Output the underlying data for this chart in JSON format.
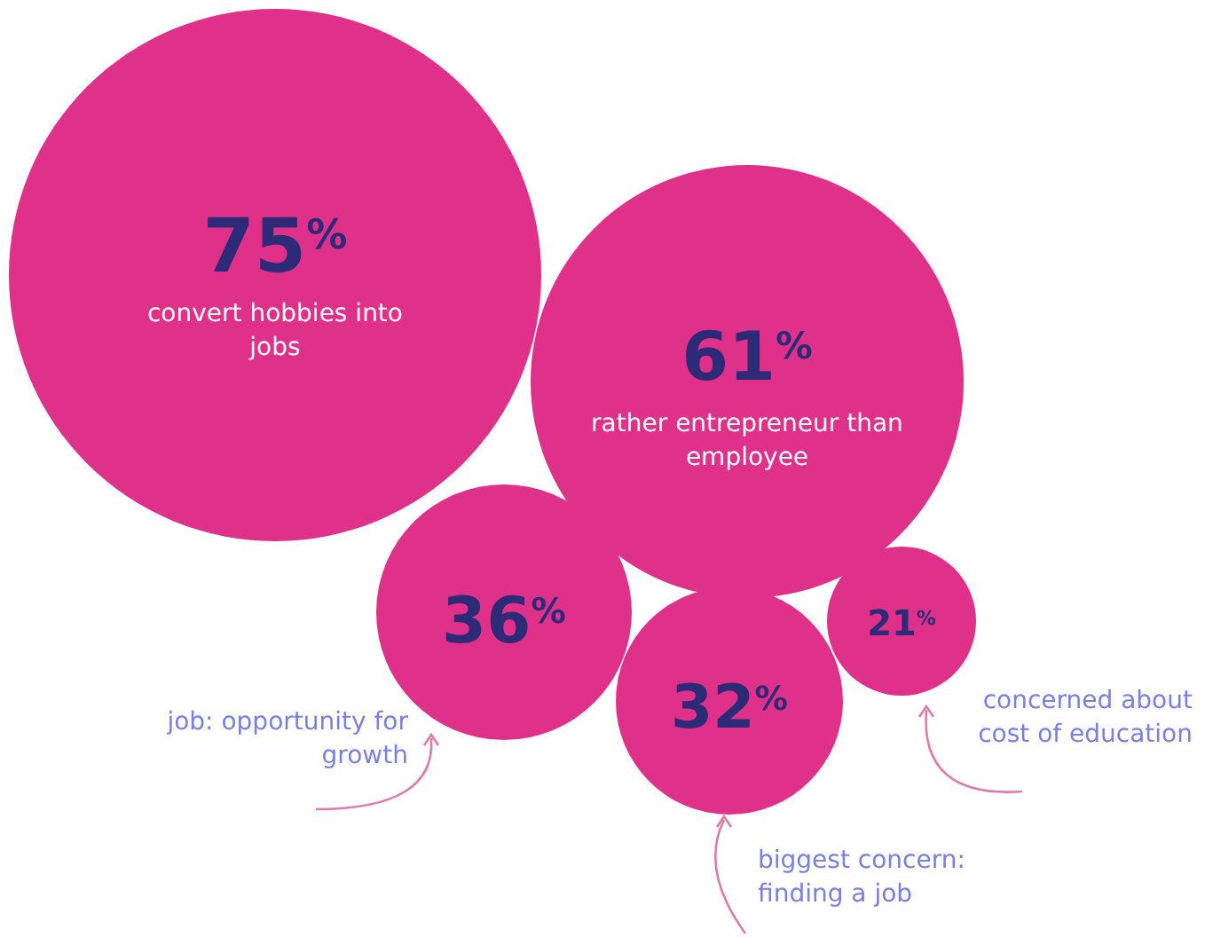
{
  "chart_data": {
    "type": "other",
    "categories": [
      "convert hobbies into jobs",
      "rather entrepreneur than employee",
      "job: opportunity for growth",
      "biggest concern: finding a job",
      "concerned about cost of education"
    ],
    "values": [
      75,
      61,
      36,
      32,
      21
    ],
    "value_labels": [
      "75$^{%}$",
      "61$^{%}$",
      "36$^{%}$",
      "32$^{%}$",
      "21$^{%}$"
    ],
    "color": "#e0318a"
  }
}
